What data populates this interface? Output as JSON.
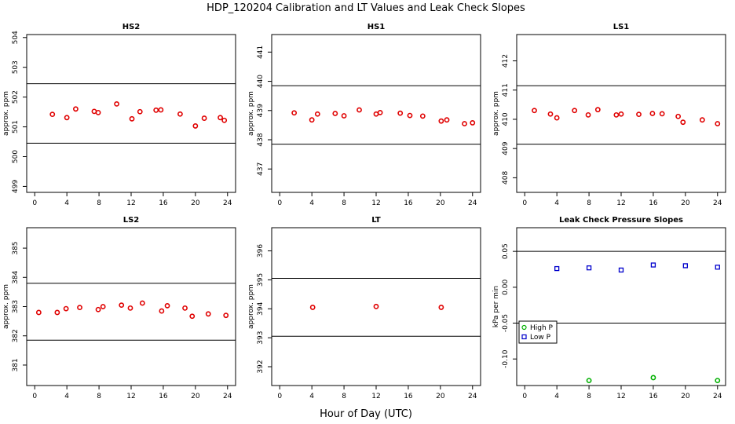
{
  "figure": {
    "title": "HDP_120204  Calibration and LT Values and Leak Check Slopes",
    "xlabel": "Hour of Day (UTC)"
  },
  "chart_data": [
    {
      "type": "scatter",
      "title": "HS2",
      "ylabel": "approx. ppm",
      "xlim": [
        -1,
        25
      ],
      "ylim": [
        498.8,
        504.1
      ],
      "xticks": [
        0,
        4,
        8,
        12,
        16,
        20,
        24
      ],
      "yticks": [
        499,
        500,
        501,
        502,
        503,
        504
      ],
      "hlines": [
        502.45,
        500.45
      ],
      "series": [
        {
          "marker": "circle",
          "color": "#e00000",
          "x": [
            2.2,
            4.0,
            5.1,
            7.4,
            7.9,
            10.2,
            12.1,
            13.1,
            15.1,
            15.7,
            18.1,
            20.0,
            21.1,
            23.1,
            23.6
          ],
          "y": [
            501.42,
            501.31,
            501.6,
            501.52,
            501.48,
            501.77,
            501.27,
            501.51,
            501.56,
            501.57,
            501.43,
            501.03,
            501.29,
            501.31,
            501.22
          ]
        }
      ]
    },
    {
      "type": "scatter",
      "title": "HS1",
      "ylabel": "approx. ppm",
      "xlim": [
        -1,
        25
      ],
      "ylim": [
        436.2,
        441.6
      ],
      "xticks": [
        0,
        4,
        8,
        12,
        16,
        20,
        24
      ],
      "yticks": [
        437,
        438,
        439,
        440,
        441
      ],
      "hlines": [
        439.85,
        437.85
      ],
      "series": [
        {
          "marker": "circle",
          "color": "#e00000",
          "x": [
            1.8,
            4.0,
            4.7,
            6.9,
            8.0,
            9.9,
            12.0,
            12.5,
            15.0,
            16.2,
            17.8,
            20.1,
            20.8,
            23.0,
            24.0
          ],
          "y": [
            438.92,
            438.68,
            438.88,
            438.9,
            438.82,
            439.02,
            438.88,
            438.93,
            438.91,
            438.83,
            438.81,
            438.64,
            438.68,
            438.55,
            438.58
          ]
        }
      ]
    },
    {
      "type": "scatter",
      "title": "LS1",
      "ylabel": "approx. ppm",
      "xlim": [
        -1,
        25
      ],
      "ylim": [
        407.5,
        412.9
      ],
      "xticks": [
        0,
        4,
        8,
        12,
        16,
        20,
        24
      ],
      "yticks": [
        408,
        409,
        410,
        411,
        412
      ],
      "hlines": [
        411.15,
        409.15
      ],
      "series": [
        {
          "marker": "circle",
          "color": "#e00000",
          "x": [
            1.2,
            3.2,
            4.0,
            6.2,
            7.9,
            9.1,
            11.4,
            12.0,
            14.2,
            15.9,
            17.1,
            19.1,
            19.7,
            22.1,
            24.0
          ],
          "y": [
            410.3,
            410.18,
            410.05,
            410.3,
            410.15,
            410.33,
            410.15,
            410.18,
            410.17,
            410.2,
            410.19,
            410.1,
            409.9,
            409.98,
            409.85
          ]
        }
      ]
    },
    {
      "type": "scatter",
      "title": "LS2",
      "ylabel": "approx. ppm",
      "xlim": [
        -1,
        25
      ],
      "ylim": [
        380.3,
        385.7
      ],
      "xticks": [
        0,
        4,
        8,
        12,
        16,
        20,
        24
      ],
      "yticks": [
        381,
        382,
        383,
        384,
        385
      ],
      "hlines": [
        383.8,
        381.85
      ],
      "series": [
        {
          "marker": "circle",
          "color": "#e00000",
          "x": [
            0.5,
            2.8,
            3.9,
            5.6,
            7.9,
            8.5,
            10.8,
            11.9,
            13.4,
            15.8,
            16.5,
            18.7,
            19.6,
            21.6,
            23.8
          ],
          "y": [
            382.8,
            382.8,
            382.93,
            382.97,
            382.9,
            383.0,
            383.05,
            382.95,
            383.12,
            382.85,
            383.03,
            382.95,
            382.67,
            382.75,
            382.7
          ]
        }
      ]
    },
    {
      "type": "scatter",
      "title": "LT",
      "ylabel": "approx. ppm",
      "xlim": [
        -1,
        25
      ],
      "ylim": [
        391.35,
        396.8
      ],
      "xticks": [
        0,
        4,
        8,
        12,
        16,
        20,
        24
      ],
      "yticks": [
        392,
        393,
        394,
        395,
        396
      ],
      "hlines": [
        395.05,
        393.05
      ],
      "series": [
        {
          "marker": "circle",
          "color": "#e00000",
          "x": [
            4.1,
            12.0,
            20.1
          ],
          "y": [
            394.05,
            394.08,
            394.05
          ]
        }
      ]
    },
    {
      "type": "scatter",
      "title": "Leak Check Pressure Slopes",
      "ylabel": "kPa per min",
      "xlim": [
        -1,
        25
      ],
      "ylim": [
        -0.137,
        0.083
      ],
      "xticks": [
        0,
        4,
        8,
        12,
        16,
        20,
        24
      ],
      "yticks": [
        -0.1,
        -0.05,
        0.0,
        0.05
      ],
      "ytick_labels": [
        "-0.10",
        "-0.05",
        "0.00",
        "0.05"
      ],
      "hlines": [
        0.05,
        -0.05
      ],
      "legend": "left",
      "series": [
        {
          "name": "High P",
          "marker": "circle",
          "color": "#00b000",
          "x": [
            8.0,
            16.0,
            24.0
          ],
          "y": [
            -0.13,
            -0.126,
            -0.13
          ]
        },
        {
          "name": "Low P",
          "marker": "square",
          "color": "#0000cc",
          "x": [
            4.0,
            8.0,
            12.0,
            16.0,
            20.0,
            24.0
          ],
          "y": [
            0.026,
            0.027,
            0.024,
            0.031,
            0.03,
            0.028
          ]
        }
      ]
    }
  ]
}
